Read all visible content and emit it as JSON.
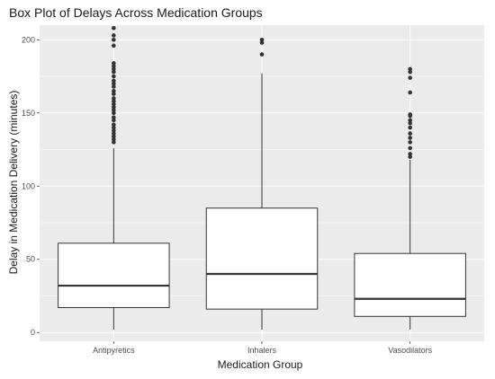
{
  "chart_data": {
    "type": "box",
    "title": "Box Plot of Delays Across Medication Groups",
    "xlabel": "Medication Group",
    "ylabel": "Delay in Medication Delivery (minutes)",
    "ylim": [
      -6,
      210
    ],
    "yticks": [
      0,
      50,
      100,
      150,
      200
    ],
    "grid": true,
    "categories": [
      "Antipyretics",
      "Inhalers",
      "Vasodilators"
    ],
    "boxes": [
      {
        "category": "Antipyretics",
        "min": 2,
        "q1": 17,
        "median": 32,
        "q3": 61,
        "max": 126,
        "outliers": [
          130,
          132,
          134,
          136,
          138,
          140,
          142,
          145,
          147,
          150,
          152,
          154,
          156,
          158,
          160,
          163,
          165,
          168,
          170,
          172,
          175,
          178,
          180,
          182,
          184,
          196,
          200,
          203,
          208
        ]
      },
      {
        "category": "Inhalers",
        "min": 2,
        "q1": 16,
        "median": 40,
        "q3": 85,
        "max": 177,
        "outliers": [
          190,
          198,
          200
        ]
      },
      {
        "category": "Vasodilators",
        "min": 2,
        "q1": 11,
        "median": 23,
        "q3": 54,
        "max": 118,
        "outliers": [
          120,
          122,
          126,
          130,
          133,
          136,
          140,
          143,
          145,
          148,
          149,
          164,
          174,
          178,
          180
        ]
      }
    ],
    "colors": {
      "panel_bg": "#ebebeb",
      "grid_major": "#ffffff",
      "box_fill": "#ffffff",
      "box_stroke": "#333333",
      "point": "#333333"
    }
  }
}
